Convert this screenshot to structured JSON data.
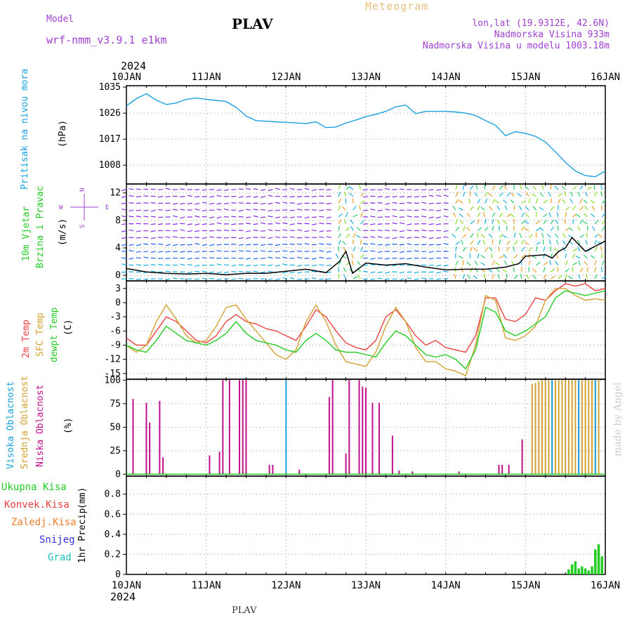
{
  "header": {
    "model_label": "Model",
    "model_name": "wrf-nmm_v3.9.1 e1km",
    "title": "PLAV",
    "meteogram_label": "Meteogram",
    "lonlat": "lon,lat (19.9312E, 42.6N)",
    "altitude": "Nadmorska Visina 933m",
    "model_altitude": "Nadmorska Visina u modelu 1003.18m",
    "bottom_label": "PLAV",
    "watermark": "made by Angel"
  },
  "colors": {
    "pressure": "#1aa0e0",
    "temp2m": "#ee4040",
    "sfc": "#d4a030",
    "dewpt": "#22cc22",
    "high_cloud": "#1aa0e0",
    "mid_cloud": "#d4a030",
    "low_cloud": "#c0108c",
    "precip_total": "#22cc22",
    "wind_speed": "#000000",
    "wind_direction_label": "#a040d0"
  },
  "chart_data": {
    "type": "line",
    "time_axis": {
      "year": "2024",
      "start": "2024-01-10T00",
      "end": "2024-01-16T00",
      "tick_labels": [
        "10JAN",
        "11JAN",
        "12JAN",
        "13JAN",
        "14JAN",
        "15JAN",
        "16JAN"
      ]
    },
    "panels": [
      {
        "id": "pressure",
        "ylabel": "Pritisak na nivou mora",
        "unit": "(hPa)",
        "yticks": [
          1008,
          1017,
          1026,
          1035
        ],
        "ylim": [
          1001.5,
          1035.5
        ],
        "series": [
          {
            "name": "Pritisak na nivou mora",
            "x": [
              0,
              3,
              6,
              9,
              12,
              15,
              18,
              21,
              24,
              27,
              30,
              33,
              36,
              39,
              42,
              45,
              48,
              51,
              54,
              57,
              60,
              63,
              66,
              69,
              72,
              75,
              78,
              81,
              84,
              87,
              90,
              93,
              96,
              99,
              102,
              105,
              108,
              111,
              114,
              117,
              120,
              123,
              126,
              129,
              132,
              135,
              138,
              141,
              144
            ],
            "values": [
              1028.5,
              1031.0,
              1032.7,
              1030.5,
              1029.0,
              1029.5,
              1030.8,
              1031.2,
              1030.8,
              1030.4,
              1030.0,
              1028.0,
              1025.0,
              1023.4,
              1023.2,
              1023.0,
              1022.8,
              1022.6,
              1022.4,
              1023.0,
              1021.0,
              1021.2,
              1022.6,
              1023.6,
              1024.8,
              1025.6,
              1026.6,
              1028.2,
              1028.8,
              1025.8,
              1026.6,
              1026.6,
              1026.6,
              1026.4,
              1026.0,
              1025.2,
              1023.4,
              1021.8,
              1018.2,
              1019.6,
              1019.0,
              1018.0,
              1016.0,
              1012.6,
              1009.0,
              1006.0,
              1004.4,
              1004.0,
              1006.0
            ]
          }
        ]
      },
      {
        "id": "wind",
        "ylabel": "10m Vjetar",
        "ylabel2": "Brzina i Pravac",
        "unit": "(m/s)",
        "direction_labels": {
          "n": "N",
          "w": "W",
          "e": "E",
          "s": "S"
        },
        "yticks": [
          0,
          4,
          8,
          12
        ],
        "ylim": [
          -0.8,
          13.3
        ],
        "series": [
          {
            "name": "10m Vjetar Brzina",
            "x": [
              0,
              6,
              12,
              18,
              24,
              30,
              36,
              42,
              48,
              54,
              60,
              64,
              66,
              68,
              72,
              78,
              84,
              90,
              96,
              102,
              108,
              114,
              118,
              120,
              126,
              128,
              130,
              132,
              134,
              138,
              144
            ],
            "values": [
              1.0,
              0.5,
              0.3,
              0.2,
              0.3,
              0.1,
              0.3,
              0.3,
              0.6,
              0.9,
              0.4,
              2.0,
              3.5,
              0.3,
              1.8,
              1.5,
              1.7,
              1.2,
              0.8,
              0.9,
              0.9,
              1.2,
              1.7,
              2.8,
              3.0,
              2.5,
              3.5,
              4.0,
              5.5,
              3.5,
              5.0
            ]
          }
        ]
      },
      {
        "id": "temperature",
        "ylabel": "2m Temp",
        "ylabel2": "SFC Temp",
        "ylabel3": "dewpt Temp",
        "unit": "(C)",
        "yticks": [
          -15,
          -12,
          -9,
          -6,
          -3,
          0,
          3
        ],
        "ylim": [
          -16.2,
          4.6
        ],
        "series": [
          {
            "name": "2m Temp",
            "x": [
              0,
              3,
              6,
              9,
              12,
              15,
              18,
              21,
              24,
              27,
              30,
              33,
              36,
              39,
              42,
              45,
              48,
              51,
              54,
              57,
              60,
              63,
              66,
              69,
              72,
              75,
              78,
              81,
              84,
              87,
              90,
              93,
              96,
              99,
              102,
              105,
              108,
              111,
              114,
              117,
              120,
              123,
              126,
              129,
              132,
              135,
              138,
              141,
              144
            ],
            "values": [
              -7.5,
              -9.0,
              -9.0,
              -6.0,
              -3.0,
              -4.0,
              -6.0,
              -8.0,
              -8.5,
              -7.0,
              -4.0,
              -2.5,
              -4.0,
              -4.5,
              -5.5,
              -6.0,
              -7.0,
              -8.0,
              -5.0,
              -1.5,
              -3.0,
              -6.0,
              -8.5,
              -9.5,
              -10.0,
              -8.0,
              -3.0,
              -1.5,
              -4.0,
              -7.0,
              -9.0,
              -8.0,
              -9.5,
              -10.0,
              -10.5,
              -7.0,
              1.0,
              1.0,
              -3.5,
              -4.0,
              -2.5,
              1.0,
              0.5,
              2.5,
              4.0,
              3.5,
              4.0,
              2.5,
              3.0
            ]
          },
          {
            "name": "SFC Temp",
            "x": [
              0,
              3,
              6,
              9,
              12,
              15,
              18,
              21,
              24,
              27,
              30,
              33,
              36,
              39,
              42,
              45,
              48,
              51,
              54,
              57,
              60,
              63,
              66,
              69,
              72,
              75,
              78,
              81,
              84,
              87,
              90,
              93,
              96,
              99,
              102,
              105,
              108,
              111,
              114,
              117,
              120,
              123,
              126,
              129,
              132,
              135,
              138,
              141,
              144
            ],
            "values": [
              -9.0,
              -10.5,
              -9.0,
              -4.0,
              -0.5,
              -3.5,
              -7.0,
              -8.5,
              -8.0,
              -5.0,
              -1.0,
              -0.5,
              -3.5,
              -6.0,
              -8.5,
              -11.0,
              -12.0,
              -10.0,
              -4.0,
              -0.5,
              -4.0,
              -9.0,
              -12.5,
              -13.0,
              -13.5,
              -10.5,
              -5.0,
              -1.0,
              -4.0,
              -9.5,
              -12.5,
              -12.5,
              -14.0,
              -14.5,
              -15.5,
              -9.0,
              1.5,
              0.5,
              -7.5,
              -8.0,
              -7.0,
              -5.0,
              0.5,
              3.0,
              3.0,
              1.5,
              0.5,
              0.8,
              0.5
            ]
          },
          {
            "name": "dewpt Temp",
            "x": [
              0,
              3,
              6,
              9,
              12,
              15,
              18,
              21,
              24,
              27,
              30,
              33,
              36,
              39,
              42,
              45,
              48,
              51,
              54,
              57,
              60,
              63,
              66,
              69,
              72,
              75,
              78,
              81,
              84,
              87,
              90,
              93,
              96,
              99,
              102,
              105,
              108,
              111,
              114,
              117,
              120,
              123,
              126,
              129,
              132,
              135,
              138,
              141,
              144
            ],
            "values": [
              -9.0,
              -10.0,
              -10.5,
              -8.0,
              -5.0,
              -6.5,
              -8.0,
              -8.5,
              -9.0,
              -8.0,
              -6.5,
              -4.0,
              -6.5,
              -8.0,
              -8.5,
              -9.0,
              -10.0,
              -10.5,
              -8.0,
              -6.5,
              -8.0,
              -10.0,
              -10.5,
              -10.5,
              -11.0,
              -11.5,
              -8.5,
              -6.0,
              -7.0,
              -9.0,
              -11.0,
              -11.5,
              -11.0,
              -12.0,
              -14.0,
              -10.0,
              -1.0,
              -2.0,
              -6.0,
              -7.0,
              -6.0,
              -4.5,
              -3.0,
              1.0,
              2.5,
              2.0,
              1.5,
              2.0,
              2.5
            ]
          }
        ]
      },
      {
        "id": "cloud",
        "ylabel": "Visoka Oblacnost",
        "ylabel2": "Srednja Oblacnost",
        "ylabel3": "Niska Oblacnost",
        "unit": "(%)",
        "yticks": [
          0,
          25,
          50,
          75,
          100
        ],
        "ylim": [
          -2,
          101
        ],
        "type": "bar",
        "series": [
          {
            "name": "Niska Oblacnost",
            "x": [
              2,
              6,
              7,
              10,
              11,
              25,
              28,
              29,
              31,
              34,
              35,
              36,
              43,
              44,
              52,
              61,
              62,
              66,
              67,
              70,
              71,
              72,
              74,
              76,
              80,
              82,
              86,
              100,
              112,
              113,
              115,
              119
            ],
            "values": [
              80,
              76,
              55,
              78,
              18,
              20,
              24,
              100,
              100,
              100,
              100,
              100,
              10,
              10,
              5,
              82,
              100,
              22,
              100,
              100,
              93,
              92,
              76,
              76,
              41,
              4,
              3,
              3,
              10,
              10,
              10,
              37
            ]
          },
          {
            "name": "Srednja Oblacnost",
            "x": [
              122,
              123,
              124,
              125,
              126,
              127,
              128,
              129,
              130,
              131,
              132,
              133,
              134,
              135,
              136,
              137,
              138,
              139,
              140,
              141,
              142
            ],
            "values": [
              96,
              97,
              99,
              100,
              100,
              100,
              100,
              100,
              100,
              100,
              100,
              100,
              100,
              100,
              100,
              100,
              100,
              100,
              100,
              100,
              100
            ]
          },
          {
            "name": "Visoka Oblacnost",
            "x": [
              48,
              128,
              136,
              141
            ],
            "values": [
              100,
              100,
              100,
              100
            ]
          }
        ]
      },
      {
        "id": "precip",
        "ylabel": "1hr Precip",
        "unit": "(mm)",
        "legend": [
          "Ukupna Kisa",
          "Konvek.Kisa",
          "Zaledj.Kisa",
          "Snijeg",
          "Grad"
        ],
        "yticks": [
          0,
          0.2,
          0.4,
          0.6,
          0.8
        ],
        "ylim": [
          0,
          0.98
        ],
        "type": "bar",
        "series": [
          {
            "name": "Ukupna Kisa",
            "x": [
              133,
              134,
              135,
              136,
              137,
              138,
              139,
              140,
              141,
              142,
              143
            ],
            "values": [
              0.05,
              0.1,
              0.13,
              0.06,
              0.08,
              0.06,
              0.04,
              0.08,
              0.25,
              0.3,
              0.18
            ]
          }
        ]
      }
    ]
  }
}
